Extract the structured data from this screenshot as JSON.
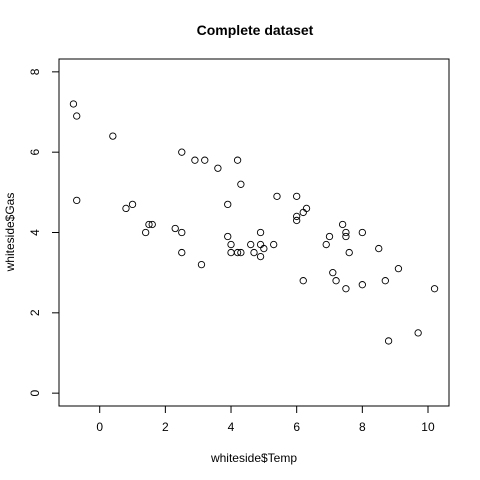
{
  "chart_data": {
    "type": "scatter",
    "title": "Complete dataset",
    "xlabel": "whiteside$Temp",
    "ylabel": "whiteside$Gas",
    "xlim": [
      -1.24,
      10.64
    ],
    "ylim": [
      -0.32,
      8.32
    ],
    "xticks": [
      0,
      2,
      4,
      6,
      8,
      10
    ],
    "yticks": [
      0,
      2,
      4,
      6,
      8
    ],
    "grid": false,
    "legend": "none",
    "marker": "open-circle",
    "points": [
      {
        "x": -0.8,
        "y": 7.2
      },
      {
        "x": -0.7,
        "y": 6.9
      },
      {
        "x": 0.4,
        "y": 6.4
      },
      {
        "x": 2.5,
        "y": 6.0
      },
      {
        "x": 2.9,
        "y": 5.8
      },
      {
        "x": 3.2,
        "y": 5.8
      },
      {
        "x": 3.6,
        "y": 5.6
      },
      {
        "x": 3.9,
        "y": 4.7
      },
      {
        "x": 4.2,
        "y": 5.8
      },
      {
        "x": 4.3,
        "y": 5.2
      },
      {
        "x": 5.4,
        "y": 4.9
      },
      {
        "x": 6.0,
        "y": 4.9
      },
      {
        "x": 6.0,
        "y": 4.3
      },
      {
        "x": 6.0,
        "y": 4.4
      },
      {
        "x": 6.2,
        "y": 4.5
      },
      {
        "x": 6.3,
        "y": 4.6
      },
      {
        "x": 6.9,
        "y": 3.7
      },
      {
        "x": 7.0,
        "y": 3.9
      },
      {
        "x": 7.4,
        "y": 4.2
      },
      {
        "x": 7.5,
        "y": 4.0
      },
      {
        "x": 7.5,
        "y": 3.9
      },
      {
        "x": 7.6,
        "y": 3.5
      },
      {
        "x": 8.0,
        "y": 4.0
      },
      {
        "x": 8.5,
        "y": 3.6
      },
      {
        "x": 9.1,
        "y": 3.1
      },
      {
        "x": 10.2,
        "y": 2.6
      },
      {
        "x": -0.7,
        "y": 4.8
      },
      {
        "x": 0.8,
        "y": 4.6
      },
      {
        "x": 1.0,
        "y": 4.7
      },
      {
        "x": 1.4,
        "y": 4.0
      },
      {
        "x": 1.5,
        "y": 4.2
      },
      {
        "x": 1.6,
        "y": 4.2
      },
      {
        "x": 2.3,
        "y": 4.1
      },
      {
        "x": 2.5,
        "y": 4.0
      },
      {
        "x": 2.5,
        "y": 3.5
      },
      {
        "x": 3.1,
        "y": 3.2
      },
      {
        "x": 3.9,
        "y": 3.9
      },
      {
        "x": 4.0,
        "y": 3.5
      },
      {
        "x": 4.0,
        "y": 3.7
      },
      {
        "x": 4.2,
        "y": 3.5
      },
      {
        "x": 4.3,
        "y": 3.5
      },
      {
        "x": 4.6,
        "y": 3.7
      },
      {
        "x": 4.7,
        "y": 3.5
      },
      {
        "x": 4.9,
        "y": 3.4
      },
      {
        "x": 4.9,
        "y": 3.7
      },
      {
        "x": 4.9,
        "y": 4.0
      },
      {
        "x": 5.0,
        "y": 3.6
      },
      {
        "x": 5.3,
        "y": 3.7
      },
      {
        "x": 6.2,
        "y": 2.8
      },
      {
        "x": 7.1,
        "y": 3.0
      },
      {
        "x": 7.2,
        "y": 2.8
      },
      {
        "x": 7.5,
        "y": 2.6
      },
      {
        "x": 8.0,
        "y": 2.7
      },
      {
        "x": 8.7,
        "y": 2.8
      },
      {
        "x": 8.8,
        "y": 1.3
      },
      {
        "x": 9.7,
        "y": 1.5
      }
    ]
  }
}
